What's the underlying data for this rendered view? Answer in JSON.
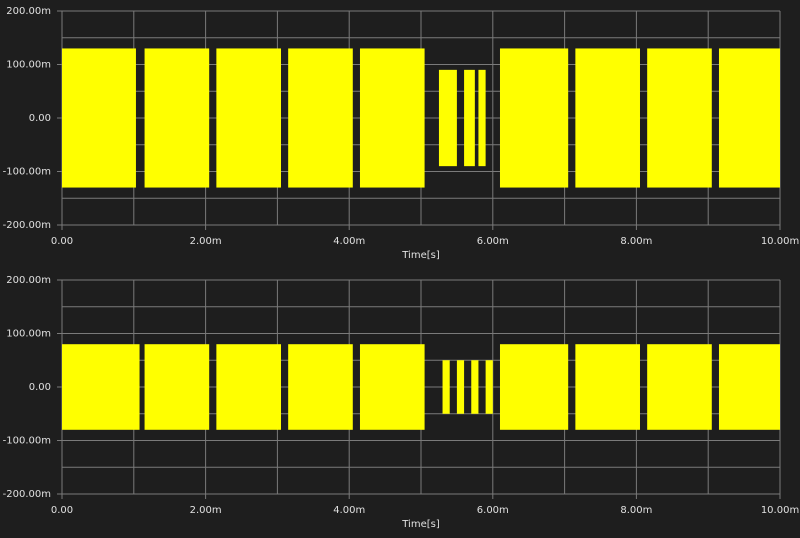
{
  "chart_data": [
    {
      "type": "band",
      "x_label": "Time[s]",
      "color": "#ffff00",
      "grid": true,
      "xlim": [
        0,
        0.01
      ],
      "ylim": [
        -0.2,
        0.2
      ],
      "xticks": [
        {
          "value": 0,
          "label": "0.00"
        },
        {
          "value": 0.002,
          "label": "2.00m"
        },
        {
          "value": 0.004,
          "label": "4.00m"
        },
        {
          "value": 0.006,
          "label": "6.00m"
        },
        {
          "value": 0.008,
          "label": "8.00m"
        },
        {
          "value": 0.01,
          "label": "10.00m"
        }
      ],
      "yticks": [
        {
          "value": -0.2,
          "label": "-200.00m"
        },
        {
          "value": -0.1,
          "label": "-100.00m"
        },
        {
          "value": 0,
          "label": "0.00"
        },
        {
          "value": 0.1,
          "label": "100.00m"
        },
        {
          "value": 0.2,
          "label": "200.00m"
        }
      ],
      "x_minor_grid": [
        0.001,
        0.003,
        0.005,
        0.007,
        0.009
      ],
      "y_minor_grid": [
        -0.15,
        -0.05,
        0.05,
        0.15
      ],
      "bursts": [
        {
          "start": 0.0,
          "end": 0.00103,
          "max": 0.13,
          "min": -0.13
        },
        {
          "start": 0.00115,
          "end": 0.00205,
          "max": 0.13,
          "min": -0.13
        },
        {
          "start": 0.00215,
          "end": 0.00305,
          "max": 0.13,
          "min": -0.13
        },
        {
          "start": 0.00315,
          "end": 0.00405,
          "max": 0.13,
          "min": -0.13
        },
        {
          "start": 0.00415,
          "end": 0.00505,
          "max": 0.13,
          "min": -0.13
        },
        {
          "start": 0.00525,
          "end": 0.0055,
          "max": 0.09,
          "min": -0.09
        },
        {
          "start": 0.0056,
          "end": 0.00575,
          "max": 0.09,
          "min": -0.09
        },
        {
          "start": 0.0058,
          "end": 0.0059,
          "max": 0.09,
          "min": -0.09
        },
        {
          "start": 0.0061,
          "end": 0.00705,
          "max": 0.13,
          "min": -0.13
        },
        {
          "start": 0.00715,
          "end": 0.00805,
          "max": 0.13,
          "min": -0.13
        },
        {
          "start": 0.00815,
          "end": 0.00905,
          "max": 0.13,
          "min": -0.13
        },
        {
          "start": 0.00915,
          "end": 0.01,
          "max": 0.13,
          "min": -0.13
        }
      ]
    },
    {
      "type": "band",
      "x_label": "Time[s]",
      "color": "#ffff00",
      "grid": true,
      "xlim": [
        0,
        0.01
      ],
      "ylim": [
        -0.2,
        0.2
      ],
      "xticks": [
        {
          "value": 0,
          "label": "0.00"
        },
        {
          "value": 0.002,
          "label": "2.00m"
        },
        {
          "value": 0.004,
          "label": "4.00m"
        },
        {
          "value": 0.006,
          "label": "6.00m"
        },
        {
          "value": 0.008,
          "label": "8.00m"
        },
        {
          "value": 0.01,
          "label": "10.00m"
        }
      ],
      "yticks": [
        {
          "value": -0.2,
          "label": "-200.00m"
        },
        {
          "value": -0.1,
          "label": "-100.00m"
        },
        {
          "value": 0,
          "label": "0.00"
        },
        {
          "value": 0.1,
          "label": "100.00m"
        },
        {
          "value": 0.2,
          "label": "200.00m"
        }
      ],
      "x_minor_grid": [
        0.001,
        0.003,
        0.005,
        0.007,
        0.009
      ],
      "y_minor_grid": [
        -0.15,
        -0.05,
        0.05,
        0.15
      ],
      "bursts": [
        {
          "start": 0.0,
          "end": 0.00108,
          "max": 0.08,
          "min": -0.08
        },
        {
          "start": 0.00115,
          "end": 0.00205,
          "max": 0.08,
          "min": -0.08
        },
        {
          "start": 0.00215,
          "end": 0.00305,
          "max": 0.08,
          "min": -0.08
        },
        {
          "start": 0.00315,
          "end": 0.00405,
          "max": 0.08,
          "min": -0.08
        },
        {
          "start": 0.00415,
          "end": 0.00505,
          "max": 0.08,
          "min": -0.08
        },
        {
          "start": 0.0053,
          "end": 0.0054,
          "max": 0.05,
          "min": -0.05
        },
        {
          "start": 0.0055,
          "end": 0.0056,
          "max": 0.05,
          "min": -0.05
        },
        {
          "start": 0.0057,
          "end": 0.0058,
          "max": 0.05,
          "min": -0.05
        },
        {
          "start": 0.0059,
          "end": 0.006,
          "max": 0.05,
          "min": -0.05
        },
        {
          "start": 0.0061,
          "end": 0.00705,
          "max": 0.08,
          "min": -0.08
        },
        {
          "start": 0.00715,
          "end": 0.00805,
          "max": 0.08,
          "min": -0.08
        },
        {
          "start": 0.00815,
          "end": 0.00905,
          "max": 0.08,
          "min": -0.08
        },
        {
          "start": 0.00915,
          "end": 0.01,
          "max": 0.08,
          "min": -0.08
        }
      ]
    }
  ]
}
